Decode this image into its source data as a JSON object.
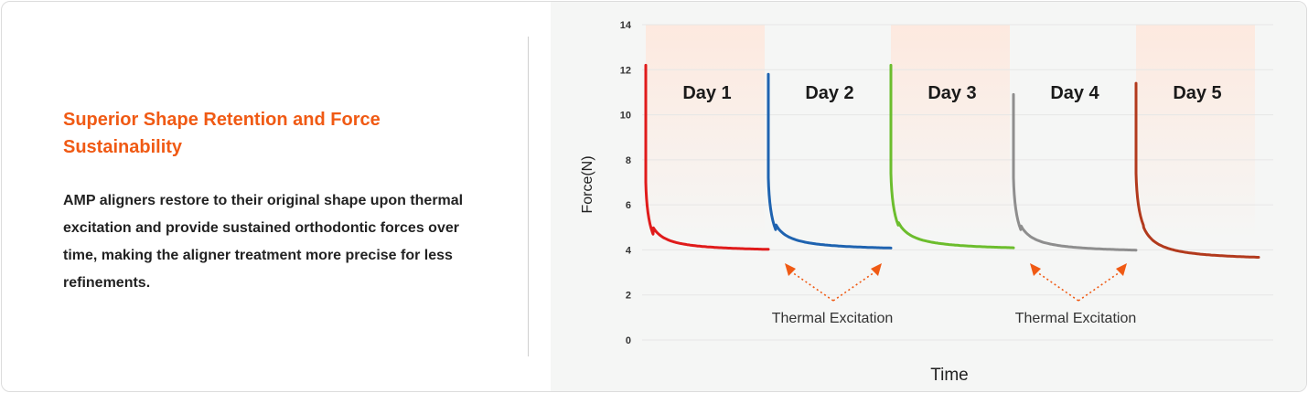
{
  "left_panel": {
    "title": "Superior Shape Retention and Force Sustainability",
    "description": "AMP aligners restore to their original shape upon thermal excitation and provide sustained orthodontic forces over time, making the aligner treatment more precise for less refinements."
  },
  "chart_data": {
    "type": "line",
    "xlabel": "Time",
    "ylabel": "Force(N)",
    "ylim": [
      0,
      14
    ],
    "yticks": [
      "0",
      "2",
      "4",
      "6",
      "8",
      "10",
      "12",
      "14"
    ],
    "grid": true,
    "accent_color": "#f05a14",
    "band_color": "#fde9df",
    "series": [
      {
        "name": "Day 1",
        "color": "#e01b1b",
        "start": 12.2,
        "knee": 6.0,
        "end": 3.9
      },
      {
        "name": "Day 2",
        "color": "#1f63b0",
        "start": 11.8,
        "knee": 6.2,
        "end": 3.95
      },
      {
        "name": "Day 3",
        "color": "#6cbd2d",
        "start": 12.2,
        "knee": 6.4,
        "end": 3.95
      },
      {
        "name": "Day 4",
        "color": "#8e8e8e",
        "start": 10.9,
        "knee": 6.2,
        "end": 3.85
      },
      {
        "name": "Day 5",
        "color": "#b23a1d",
        "start": 11.4,
        "knee": 6.4,
        "end": 3.5
      }
    ],
    "annotations": [
      {
        "text": "Thermal Excitation",
        "between": [
          1,
          2
        ]
      },
      {
        "text": "Thermal Excitation",
        "between": [
          3,
          4
        ]
      }
    ]
  }
}
